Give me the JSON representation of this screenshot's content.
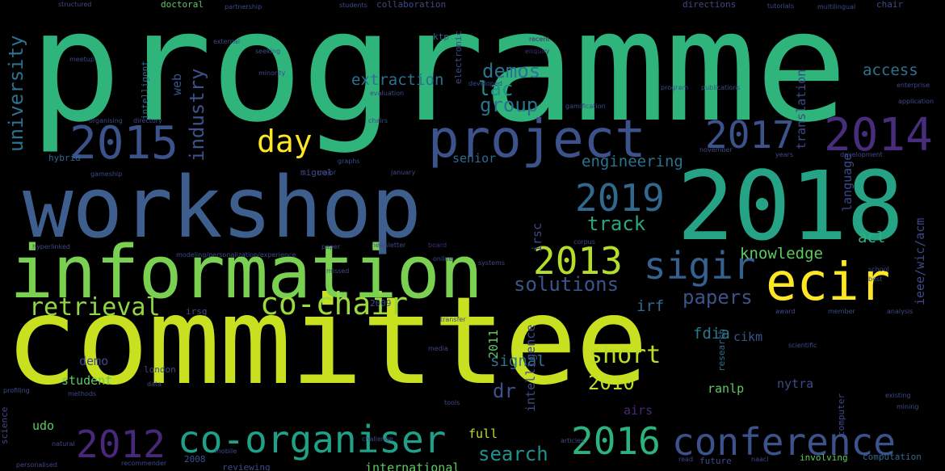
{
  "colors": {
    "background": "#000000",
    "palette": [
      "#440154",
      "#3b528b",
      "#21918c",
      "#5ec962",
      "#fde725"
    ]
  },
  "words": {
    "programme": "programme",
    "committee": "committee",
    "workshop": "workshop",
    "w2018": "2018",
    "information": "information",
    "project": "project",
    "ecir": "ecir",
    "w2015": "2015",
    "w2014": "2014",
    "w2017": "2017",
    "w2019": "2019",
    "w2013": "2013",
    "w2016": "2016",
    "w2012": "2012",
    "w2010": "2010",
    "w2011": "2011",
    "w2009": "2009",
    "w2008": "2008",
    "sigir": "sigir",
    "day": "day",
    "conference": "conference",
    "co_organiser": "co-organiser",
    "co_chair": "co-chair",
    "retrieval": "retrieval",
    "solutions": "solutions",
    "papers": "papers",
    "short": "short",
    "search": "search",
    "university": "university",
    "industry": "industry",
    "web": "web",
    "intelligent": "intelligent",
    "electronic": "electronic",
    "lac": "lac",
    "demos": "demos",
    "group": "group",
    "extraction": "extraction",
    "ktp": "ktp",
    "access": "access",
    "translation": "translation",
    "language": "language",
    "engineering": "engineering",
    "senior": "senior",
    "track": "track",
    "irsc": "irsc",
    "acl": "acl",
    "knowledge": "knowledge",
    "ieee": "ieee/wic/acm",
    "irf": "irf",
    "fdia": "fdia",
    "cikm": "cikm",
    "research": "research",
    "signal": "signal",
    "demo": "demo",
    "student": "student",
    "dr": "dr",
    "intelligence": "intelligence",
    "ranlp": "ranlp",
    "nytra": "nytra",
    "full": "full",
    "international": "international",
    "udo": "udo",
    "airs": "airs",
    "future": "future",
    "involving": "involving",
    "computation": "computation",
    "computer": "computer",
    "hybrid": "hybrid",
    "miguel": "miguel",
    "london": "london",
    "reviewing": "reviewing",
    "irsg": "irsg",
    "science": "science",
    "doctoral": "doctoral",
    "collaboration": "collaboration",
    "directions": "directions",
    "chair": "chair",
    "structured": "structured",
    "partnership": "partnership",
    "students": "students",
    "tutorials": "tutorials",
    "multilingual": "multilingual",
    "recent": "recent",
    "enquiry": "enquiry",
    "developed": "developed",
    "gamification": "gamification",
    "enterprise": "enterprise",
    "november": "november",
    "development": "development",
    "years": "years",
    "data": "data",
    "read": "read",
    "naacl": "naacl",
    "school": "school",
    "best": "best",
    "award": "award",
    "member": "member",
    "hyperlinked": "hyperlinked",
    "modeling": "modeling/personalization/experience",
    "paper": "paper",
    "newsletter": "newsletter",
    "board": "board",
    "online": "online",
    "missed": "missed",
    "systems": "systems",
    "evaluation": "evaluation",
    "application": "application",
    "publications": "publications",
    "program": "program",
    "scientific": "scientific",
    "analysis": "analysis",
    "existing": "existing",
    "articles": "articles",
    "challenge": "challenge",
    "natural": "natural",
    "personalised": "personalised",
    "recommender": "recommender",
    "mobile": "mobile",
    "external": "external",
    "seeking": "seeking",
    "minority": "minority",
    "meetup": "meetup",
    "organising": "organising",
    "directory": "directory",
    "chairs": "chairs",
    "graphs": "graphs",
    "january": "january",
    "major": "major",
    "gameship": "gameship",
    "corpus": "corpus",
    "profiling": "profiling",
    "methods": "methods",
    "mining": "mining",
    "media": "media",
    "transfer": "transfer",
    "tools": "tools"
  }
}
